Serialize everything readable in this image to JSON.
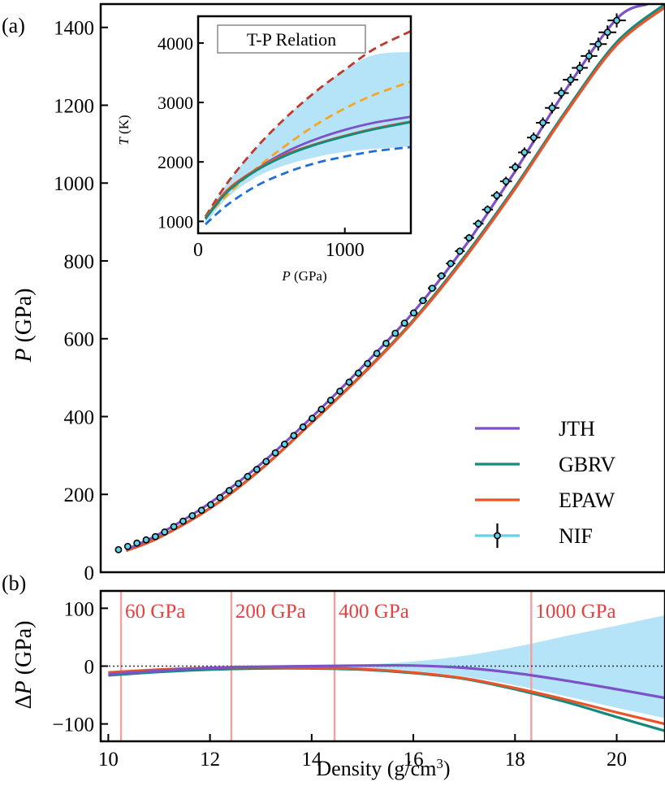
{
  "chart_data": [
    {
      "panel": "a",
      "type": "line",
      "panel_label": "(a)",
      "xlim": [
        9.85,
        20.95
      ],
      "ylim": [
        0,
        1460
      ],
      "yticks": [
        0,
        200,
        400,
        600,
        800,
        1000,
        1200,
        1400
      ],
      "ylabel_italic": "P",
      "ylabel_rest": " (GPa)",
      "legend": {
        "placement": "lower-right",
        "entries": [
          {
            "label": "JTH",
            "color": "#7b52c7"
          },
          {
            "label": "GBRV",
            "color": "#138a7c"
          },
          {
            "label": "EPAW",
            "color": "#e8552a"
          },
          {
            "label": "NIF",
            "color": "#5fd3ea"
          }
        ]
      },
      "series": [
        {
          "name": "JTH",
          "color": "#7b52c7",
          "x": [
            10.35,
            11,
            12,
            13,
            14,
            15,
            16,
            17,
            18,
            19,
            20,
            20.6
          ],
          "y": [
            58,
            98,
            178,
            278,
            398,
            528,
            668,
            835,
            1030,
            1240,
            1422,
            1460
          ]
        },
        {
          "name": "GBRV",
          "color": "#138a7c",
          "x": [
            10.35,
            11,
            12,
            13,
            14,
            15,
            16,
            17,
            18,
            19,
            20,
            20.95
          ],
          "y": [
            56,
            90,
            165,
            265,
            385,
            510,
            648,
            810,
            990,
            1185,
            1362,
            1460
          ]
        },
        {
          "name": "EPAW",
          "color": "#e8552a",
          "x": [
            10.35,
            11,
            12,
            13,
            14,
            15,
            16,
            17,
            18,
            19,
            20,
            20.95
          ],
          "y": [
            55,
            89,
            164,
            264,
            384,
            508,
            645,
            805,
            985,
            1180,
            1355,
            1452
          ]
        },
        {
          "name": "NIF",
          "color": "#5fd3ea",
          "x_start": 10.2,
          "x_end": 20.0,
          "points": 55,
          "y_model": [
            [
              10.2,
              58
            ],
            [
              11,
              95
            ],
            [
              12,
              172
            ],
            [
              13,
              272
            ],
            [
              14,
              394
            ],
            [
              15,
              522
            ],
            [
              16,
              665
            ],
            [
              17,
              840
            ],
            [
              18,
              1040
            ],
            [
              19,
              1250
            ],
            [
              20,
              1418
            ]
          ]
        }
      ],
      "inset": {
        "title": "T-P Relation",
        "xlim": [
          0,
          1450
        ],
        "ylim": [
          800,
          4450
        ],
        "xticks": [
          0,
          1000
        ],
        "yticks": [
          1000,
          2000,
          3000,
          4000
        ],
        "xlabel_italic": "P",
        "xlabel_rest": " (GPa)",
        "ylabel_italic": "T",
        "ylabel_rest": " (K)",
        "band_color": "#b5e3f7",
        "series": [
          {
            "color": "#c0392b",
            "dashed": true,
            "x": [
              50,
              200,
              400,
              600,
              800,
              1000,
              1200,
              1450
            ],
            "y": [
              1080,
              1650,
              2250,
              2750,
              3180,
              3550,
              3900,
              4200
            ]
          },
          {
            "color": "#f5a623",
            "dashed": true,
            "x": [
              50,
              200,
              400,
              600,
              800,
              1000,
              1200,
              1450
            ],
            "y": [
              1060,
              1450,
              1900,
              2280,
              2620,
              2900,
              3130,
              3350
            ]
          },
          {
            "color": "#1f6fd6",
            "dashed": true,
            "x": [
              50,
              200,
              400,
              600,
              800,
              1000,
              1200,
              1450
            ],
            "y": [
              950,
              1280,
              1600,
              1820,
              1980,
              2090,
              2180,
              2250
            ]
          },
          {
            "color": "#7b52c7",
            "dashed": false,
            "x": [
              50,
              200,
              400,
              600,
              800,
              1000,
              1200,
              1450
            ],
            "y": [
              1050,
              1500,
              1880,
              2170,
              2380,
              2540,
              2660,
              2760
            ]
          },
          {
            "color": "#e8552a",
            "dashed": false,
            "x": [
              50,
              200,
              400,
              600,
              800,
              1000,
              1200,
              1450
            ],
            "y": [
              1060,
              1530,
              1880,
              2130,
              2300,
              2440,
              2560,
              2680
            ]
          },
          {
            "color": "#138a7c",
            "dashed": false,
            "x": [
              50,
              200,
              400,
              600,
              800,
              1000,
              1200,
              1450
            ],
            "y": [
              1040,
              1500,
              1860,
              2110,
              2290,
              2430,
              2550,
              2670
            ]
          }
        ],
        "band_upper": [
          [
            50,
            1080
          ],
          [
            200,
            1650
          ],
          [
            400,
            2250
          ],
          [
            600,
            2750
          ],
          [
            800,
            3180
          ],
          [
            1000,
            3550
          ],
          [
            1200,
            3800
          ],
          [
            1450,
            3850
          ]
        ],
        "band_lower": [
          [
            50,
            950
          ],
          [
            200,
            1400
          ],
          [
            400,
            1750
          ],
          [
            600,
            1950
          ],
          [
            800,
            2080
          ],
          [
            1000,
            2170
          ],
          [
            1200,
            2220
          ],
          [
            1450,
            2260
          ]
        ]
      }
    },
    {
      "panel": "b",
      "type": "line",
      "panel_label": "(b)",
      "xlim": [
        9.85,
        20.95
      ],
      "ylim": [
        -130,
        130
      ],
      "xticks": [
        10,
        12,
        14,
        16,
        18,
        20
      ],
      "yticks": [
        -100,
        0,
        100
      ],
      "xlabel": "Density (g/cm",
      "xlabel_sup": "3",
      "xlabel_tail": ")",
      "ylabel_delta": "Δ",
      "ylabel_italic": "P",
      "ylabel_rest": " (GPa)",
      "vlines": [
        {
          "x": 10.25,
          "label": "60 GPa"
        },
        {
          "x": 12.42,
          "label": "200 GPa"
        },
        {
          "x": 14.45,
          "label": "400 GPa"
        },
        {
          "x": 18.32,
          "label": "1000 GPa"
        }
      ],
      "band_color": "#b5e3f7",
      "band_upper": [
        [
          14.0,
          0
        ],
        [
          15,
          3
        ],
        [
          16,
          8
        ],
        [
          17,
          18
        ],
        [
          18,
          33
        ],
        [
          19,
          52
        ],
        [
          20,
          70
        ],
        [
          20.95,
          88
        ]
      ],
      "band_lower": [
        [
          14.0,
          0
        ],
        [
          15,
          -3
        ],
        [
          16,
          -8
        ],
        [
          17,
          -18
        ],
        [
          18,
          -33
        ],
        [
          19,
          -52
        ],
        [
          20,
          -72
        ],
        [
          20.95,
          -90
        ]
      ],
      "series": [
        {
          "name": "JTH",
          "color": "#7b52c7",
          "x": [
            10,
            11,
            12,
            13,
            14,
            15,
            16,
            17,
            18,
            19,
            20,
            20.95
          ],
          "y": [
            -14,
            -8,
            -3,
            -1,
            0,
            1,
            1,
            -3,
            -12,
            -25,
            -40,
            -55
          ]
        },
        {
          "name": "GBRV",
          "color": "#138a7c",
          "x": [
            10,
            11,
            12,
            13,
            14,
            15,
            16,
            17,
            18,
            19,
            20,
            20.95
          ],
          "y": [
            -16,
            -10,
            -6,
            -4,
            -4,
            -6,
            -12,
            -22,
            -40,
            -62,
            -88,
            -112
          ]
        },
        {
          "name": "EPAW",
          "color": "#e8552a",
          "x": [
            10,
            11,
            12,
            13,
            14,
            15,
            16,
            17,
            18,
            19,
            20,
            20.95
          ],
          "y": [
            -11,
            -6,
            -3,
            -2,
            -3,
            -5,
            -11,
            -21,
            -38,
            -58,
            -80,
            -100
          ]
        }
      ]
    }
  ]
}
